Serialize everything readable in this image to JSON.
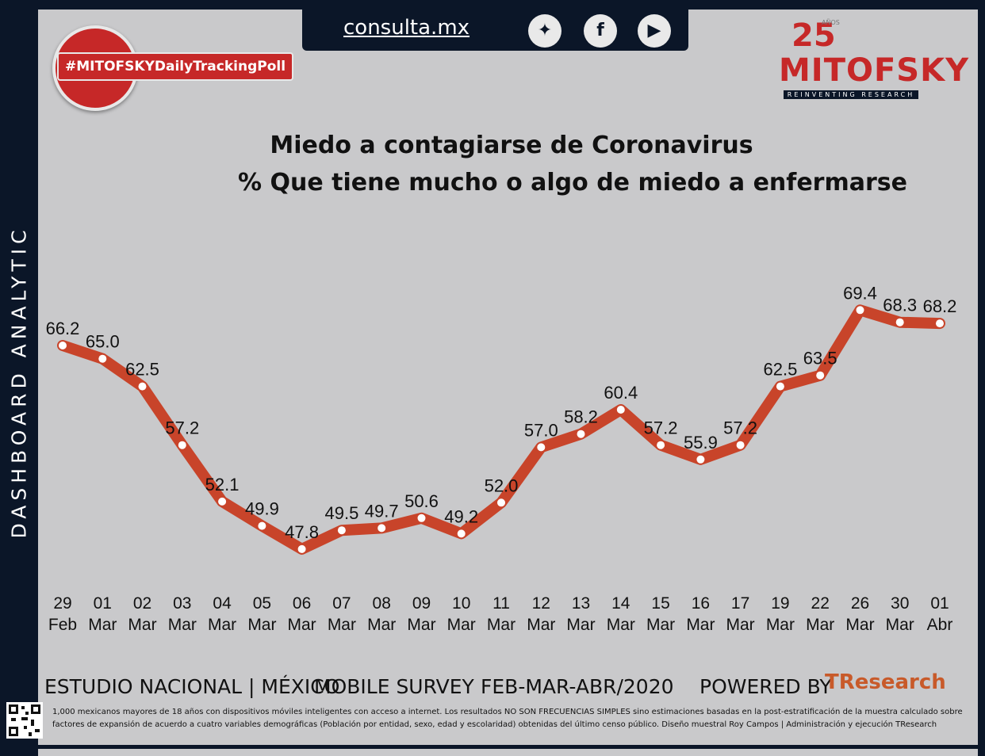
{
  "header": {
    "site_url": "consulta.mx",
    "social_icons": [
      "twitter-icon",
      "facebook-icon",
      "youtube-icon"
    ],
    "hashtag": "#MITOFSKYDailyTrackingPoll",
    "logo_years": "25",
    "logo_years_small": "AÑOS",
    "logo_name": "MITOFSKY",
    "logo_tagline": "REINVENTING RESEARCH"
  },
  "sidebar": {
    "label": "DASHBOARD ANALYTIC"
  },
  "chart_data": {
    "type": "line",
    "title": "Miedo a contagiarse de Coronavirus",
    "subtitle": "% Que tiene mucho o algo de miedo a enfermarse",
    "categories": [
      [
        "29",
        "Feb"
      ],
      [
        "01",
        "Mar"
      ],
      [
        "02",
        "Mar"
      ],
      [
        "03",
        "Mar"
      ],
      [
        "04",
        "Mar"
      ],
      [
        "05",
        "Mar"
      ],
      [
        "06",
        "Mar"
      ],
      [
        "07",
        "Mar"
      ],
      [
        "08",
        "Mar"
      ],
      [
        "09",
        "Mar"
      ],
      [
        "10",
        "Mar"
      ],
      [
        "11",
        "Mar"
      ],
      [
        "12",
        "Mar"
      ],
      [
        "13",
        "Mar"
      ],
      [
        "14",
        "Mar"
      ],
      [
        "15",
        "Mar"
      ],
      [
        "16",
        "Mar"
      ],
      [
        "17",
        "Mar"
      ],
      [
        "19",
        "Mar"
      ],
      [
        "22",
        "Mar"
      ],
      [
        "26",
        "Mar"
      ],
      [
        "30",
        "Mar"
      ],
      [
        "01",
        "Abr"
      ]
    ],
    "values": [
      66.2,
      65.0,
      62.5,
      57.2,
      52.1,
      49.9,
      47.8,
      49.5,
      49.7,
      50.6,
      49.2,
      52.0,
      57.0,
      58.2,
      60.4,
      57.2,
      55.9,
      57.2,
      62.5,
      63.5,
      69.4,
      68.3,
      68.2
    ],
    "value_labels": [
      "66.2",
      "65.0",
      "62.5",
      "57.2",
      "52.1",
      "49.9",
      "47.8",
      "49.5",
      "49.7",
      "50.6",
      "49.2",
      "52.0",
      "57.0",
      "58.2",
      "60.4",
      "57.2",
      "55.9",
      "57.2",
      "62.5",
      "63.5",
      "69.4",
      "68.3",
      "68.2"
    ],
    "ylim": [
      45,
      72
    ],
    "line_color": "#c8442a",
    "marker_color": "#ffffff",
    "grid": false,
    "legend": "none"
  },
  "footer": {
    "study": "ESTUDIO NACIONAL | MÉXICO",
    "survey": "MOBILE SURVEY",
    "period": "FEB-MAR-ABR/2020",
    "powered_by": "POWERED BY",
    "brand": "TResearch",
    "disclaimer": "1,000 mexicanos mayores de 18 años con dispositivos móviles inteligentes con acceso a internet. Los resultados NO SON FRECUENCIAS SIMPLES sino estimaciones basadas en la post-estratificación de la muestra calculado sobre factores de expansión de acuerdo a cuatro variables demográficas (Población por entidad, sexo, edad y escolaridad) obtenidas del último censo público. Diseño muestral Roy Campos | Administración y ejecución TResearch"
  }
}
